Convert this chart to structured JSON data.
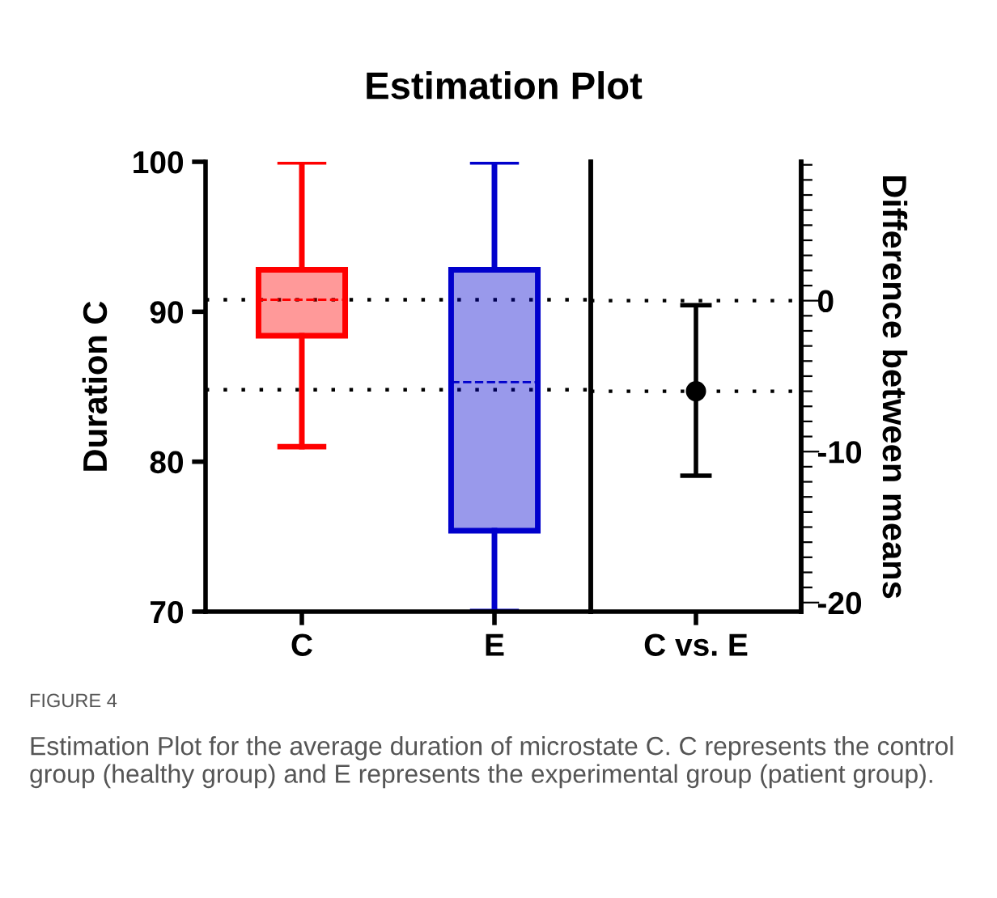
{
  "chart_data": [
    {
      "type": "box",
      "title": "Estimation Plot",
      "ylabel": "Duration C",
      "categories": [
        "C",
        "E"
      ],
      "boxes": [
        {
          "low": 81.0,
          "q1": 88.4,
          "median": 90.8,
          "q3": 92.8,
          "high": 100
        },
        {
          "low": 70,
          "q1": 75.4,
          "median": 85.3,
          "q3": 92.8,
          "high": 100
        }
      ],
      "colors": [
        "#ff0000",
        "#0000cc"
      ],
      "ylim": [
        70,
        100
      ],
      "yticks": [
        70,
        80,
        90,
        100
      ],
      "ref_lines": [
        {
          "axis": "y",
          "value": 90.8,
          "line_style": "dotted",
          "color": "#000000"
        },
        {
          "axis": "y",
          "value": 84.8,
          "line_style": "dotted",
          "color": "#000000"
        }
      ],
      "annotations": [
        "FIGURE 4",
        "Estimation Plot for the average duration of microstate C. C represents the control group (healthy group) and E represents the experimental group (patient group)."
      ]
    },
    {
      "type": "scatter",
      "categories": [
        "C vs. E"
      ],
      "y2label": "Difference between means",
      "series": [
        {
          "values": [
            -6.0
          ],
          "errors": [
            [
              -11.6,
              -0.3
            ]
          ],
          "color": "#000000",
          "axis": "y2"
        }
      ],
      "marker": "circle",
      "y2lim": [
        -20.6,
        9.2
      ],
      "y2ticks": [
        {
          "value": 9,
          "label": null
        },
        {
          "value": 8,
          "label": null
        },
        {
          "value": 7,
          "label": null
        },
        {
          "value": 6,
          "label": null
        },
        {
          "value": 5,
          "label": null
        },
        {
          "value": 4,
          "label": null
        },
        {
          "value": 3,
          "label": null
        },
        {
          "value": 2,
          "label": null
        },
        {
          "value": 1,
          "label": null
        },
        0,
        {
          "value": -1,
          "label": null
        },
        {
          "value": -2,
          "label": null
        },
        {
          "value": -3,
          "label": null
        },
        {
          "value": -4,
          "label": null
        },
        {
          "value": -5,
          "label": null
        },
        {
          "value": -6,
          "label": null
        },
        {
          "value": -7,
          "label": null
        },
        {
          "value": -8,
          "label": null
        },
        {
          "value": -9,
          "label": null
        },
        -10,
        {
          "value": -11,
          "label": null
        },
        {
          "value": -12,
          "label": null
        },
        {
          "value": -13,
          "label": null
        },
        {
          "value": -14,
          "label": null
        },
        {
          "value": -15,
          "label": null
        },
        {
          "value": -16,
          "label": null
        },
        {
          "value": -17,
          "label": null
        },
        {
          "value": -18,
          "label": null
        },
        {
          "value": -19,
          "label": null
        },
        -20
      ],
      "ref_lines": [
        {
          "axis": "y2",
          "value": 0,
          "line_style": "dotted",
          "color": "#000000"
        },
        {
          "axis": "y2",
          "value": -6.0,
          "line_style": "dotted",
          "color": "#000000"
        }
      ]
    }
  ]
}
